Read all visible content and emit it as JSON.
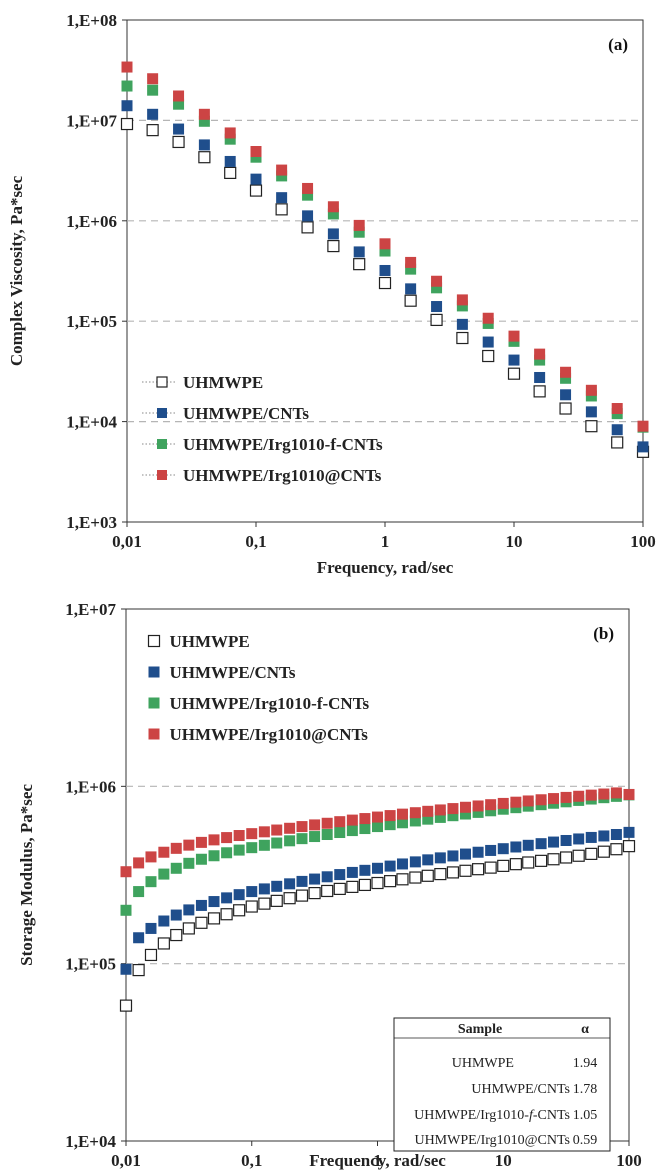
{
  "chart_data": [
    {
      "type": "scatter",
      "panel_label": "(a)",
      "xlabel": "Frequency, rad/sec",
      "ylabel": "Complex Viscosity, Pa*sec",
      "xscale": "log",
      "yscale": "log",
      "xlim": [
        0.01,
        100
      ],
      "ylim": [
        1000,
        100000000
      ],
      "x_ticks": [
        "0,01",
        "0,1",
        "1",
        "10",
        "100"
      ],
      "y_ticks": [
        "1,E+03",
        "1,E+04",
        "1,E+05",
        "1,E+06",
        "1,E+07",
        "1,E+08"
      ],
      "grid": "horizontal dashed",
      "legend_position": "bottom-left",
      "points_per_decade": 5,
      "x": [
        0.01,
        0.0158,
        0.0251,
        0.0398,
        0.0631,
        0.1,
        0.158,
        0.251,
        0.398,
        0.631,
        1,
        1.58,
        2.51,
        3.98,
        6.31,
        10,
        15.8,
        25.1,
        39.8,
        63.1,
        100
      ],
      "series": [
        {
          "name": "UHMWPE",
          "color": "#222222",
          "marker": "hollow-square",
          "y": [
            9200000,
            8000000,
            6100000,
            4300000,
            3000000,
            2000000,
            1300000,
            860000,
            560000,
            370000,
            240000,
            160000,
            103000,
            68000,
            45000,
            30000,
            20000,
            13500,
            9000,
            6200,
            5000
          ]
        },
        {
          "name": "UHMWPE/CNTs",
          "color": "#1f4e8c",
          "marker": "filled-square",
          "y": [
            14000000,
            11500000,
            8200000,
            5700000,
            3900000,
            2600000,
            1700000,
            1120000,
            740000,
            490000,
            320000,
            210000,
            140000,
            93000,
            62000,
            41000,
            27500,
            18500,
            12500,
            8300,
            5600
          ]
        },
        {
          "name": "UHMWPE/Irg1010-f-CNTs",
          "color": "#3fa35e",
          "marker": "filled-square",
          "y": [
            22000000,
            20000000,
            14500000,
            9800000,
            6500000,
            4300000,
            2800000,
            1800000,
            1170000,
            770000,
            500000,
            330000,
            215000,
            142000,
            95000,
            63000,
            41000,
            27000,
            18000,
            12000,
            8800
          ]
        },
        {
          "name": "UHMWPE/Irg1010@CNTs",
          "color": "#cc4444",
          "marker": "filled-square",
          "y": [
            34000000,
            26000000,
            17500000,
            11500000,
            7500000,
            4900000,
            3200000,
            2100000,
            1380000,
            900000,
            590000,
            385000,
            250000,
            163000,
            107000,
            71000,
            47000,
            31000,
            20500,
            13500,
            9000
          ]
        }
      ]
    },
    {
      "type": "scatter",
      "panel_label": "(b)",
      "xlabel": "Frequency, rad/sec",
      "ylabel": "Storage Modulus, Pa*sec",
      "xscale": "log",
      "yscale": "log",
      "xlim": [
        0.01,
        100
      ],
      "ylim": [
        10000,
        10000000
      ],
      "x_ticks": [
        "0,01",
        "0,1",
        "1",
        "10",
        "100"
      ],
      "y_ticks": [
        "1,E+04",
        "1,E+05",
        "1,E+06",
        "1,E+07"
      ],
      "grid": "horizontal dashed",
      "legend_position": "top-left",
      "points_per_decade": 10,
      "x": [
        0.01,
        0.0126,
        0.0158,
        0.02,
        0.0251,
        0.0316,
        0.0398,
        0.0501,
        0.0631,
        0.0794,
        0.1,
        0.126,
        0.158,
        0.2,
        0.251,
        0.316,
        0.398,
        0.501,
        0.631,
        0.794,
        1,
        1.26,
        1.58,
        2,
        2.51,
        3.16,
        3.98,
        5.01,
        6.31,
        7.94,
        10,
        12.6,
        15.8,
        20,
        25.1,
        31.6,
        39.8,
        50.1,
        63.1,
        79.4,
        100
      ],
      "series": [
        {
          "name": "UHMWPE",
          "color": "#222222",
          "marker": "hollow-square",
          "y": [
            58000,
            92000,
            112000,
            130000,
            145000,
            158000,
            170000,
            180000,
            190000,
            200000,
            210000,
            218000,
            226000,
            234000,
            242000,
            250000,
            257000,
            264000,
            271000,
            278000,
            285000,
            292000,
            299000,
            306000,
            313000,
            320000,
            327000,
            334000,
            341000,
            348000,
            356000,
            364000,
            372000,
            380000,
            388000,
            397000,
            406000,
            416000,
            428000,
            442000,
            460000
          ]
        },
        {
          "name": "UHMWPE/CNTs",
          "color": "#1f4e8c",
          "marker": "filled-square",
          "y": [
            93000,
            140000,
            158000,
            174000,
            188000,
            201000,
            213000,
            224000,
            235000,
            245000,
            255000,
            264000,
            273000,
            282000,
            291000,
            300000,
            309000,
            318000,
            327000,
            336000,
            345000,
            355000,
            365000,
            375000,
            385000,
            395000,
            405000,
            415000,
            425000,
            435000,
            445000,
            455000,
            465000,
            475000,
            485000,
            495000,
            505000,
            515000,
            525000,
            535000,
            550000
          ]
        },
        {
          "name": "UHMWPE/Irg1010-f-CNTs",
          "color": "#3fa35e",
          "marker": "filled-square",
          "y": [
            200000,
            255000,
            290000,
            320000,
            345000,
            368000,
            388000,
            406000,
            422000,
            437000,
            451000,
            465000,
            479000,
            493000,
            507000,
            521000,
            535000,
            549000,
            563000,
            578000,
            593000,
            608000,
            623000,
            638000,
            653000,
            668000,
            683000,
            698000,
            713000,
            728000,
            743000,
            758000,
            773000,
            788000,
            803000,
            818000,
            833000,
            848000,
            863000,
            878000,
            895000
          ]
        },
        {
          "name": "UHMWPE/Irg1010@CNTs",
          "color": "#cc4444",
          "marker": "filled-square",
          "y": [
            330000,
            370000,
            400000,
            425000,
            447000,
            466000,
            483000,
            499000,
            514000,
            528000,
            541000,
            554000,
            567000,
            580000,
            593000,
            606000,
            619000,
            632000,
            645000,
            658000,
            671000,
            684000,
            697000,
            710000,
            723000,
            736000,
            749000,
            762000,
            775000,
            788000,
            801000,
            814000,
            827000,
            840000,
            853000,
            866000,
            879000,
            892000,
            905000,
            918000,
            900000
          ]
        }
      ],
      "table": {
        "headers": [
          "Sample",
          "α"
        ],
        "rows": [
          {
            "sample": "UHMWPE",
            "alpha": "1.94"
          },
          {
            "sample": "UHMWPE/CNTs",
            "alpha": "1.78"
          },
          {
            "sample_pre": "UHMWPE/Irg1010-",
            "sample_italic": "f",
            "sample_post": "-CNTs",
            "alpha": "1.05"
          },
          {
            "sample": "UHMWPE/Irg1010@CNTs",
            "alpha": "0.59"
          }
        ]
      }
    }
  ]
}
